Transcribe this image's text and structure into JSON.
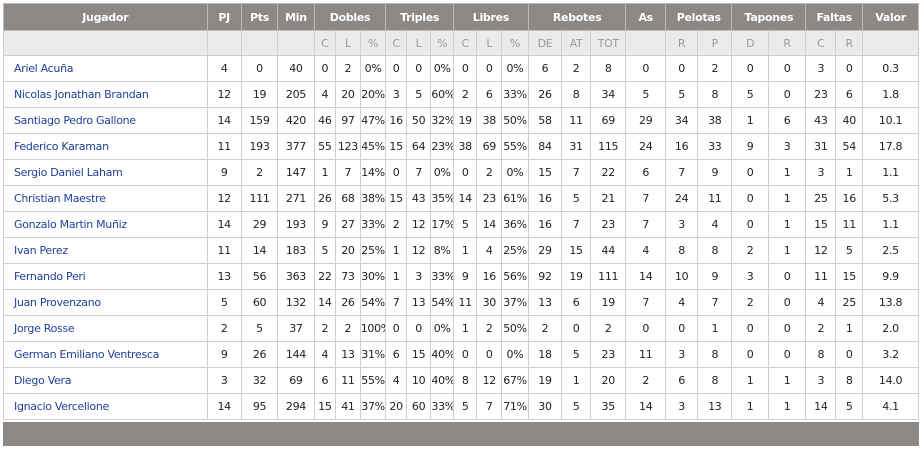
{
  "headers": {
    "jugador": "Jugador",
    "pj": "PJ",
    "pts": "Pts",
    "min": "Min",
    "dobles": "Dobles",
    "triples": "Triples",
    "libres": "Libres",
    "rebotes": "Rebotes",
    "as": "As",
    "pelotas": "Pelotas",
    "tapones": "Tapones",
    "faltas": "Faltas",
    "valor": "Valor"
  },
  "subheaders": {
    "c": "C",
    "l": "L",
    "pct": "%",
    "de": "DE",
    "at": "AT",
    "tot": "TOT",
    "r": "R",
    "p": "P",
    "d": "D"
  },
  "players": [
    {
      "name": "Ariel Acuña",
      "stats": [
        "4",
        "0",
        "40",
        "0",
        "2",
        "0%",
        "0",
        "0",
        "0%",
        "0",
        "0",
        "0%",
        "6",
        "2",
        "8",
        "0",
        "0",
        "2",
        "0",
        "0",
        "3",
        "0",
        "0.3"
      ]
    },
    {
      "name": "Nicolas Jonathan Brandan",
      "stats": [
        "12",
        "19",
        "205",
        "4",
        "20",
        "20%",
        "3",
        "5",
        "60%",
        "2",
        "6",
        "33%",
        "26",
        "8",
        "34",
        "5",
        "5",
        "8",
        "5",
        "0",
        "23",
        "6",
        "1.8"
      ]
    },
    {
      "name": "Santiago Pedro Gallone",
      "stats": [
        "14",
        "159",
        "420",
        "46",
        "97",
        "47%",
        "16",
        "50",
        "32%",
        "19",
        "38",
        "50%",
        "58",
        "11",
        "69",
        "29",
        "34",
        "38",
        "1",
        "6",
        "43",
        "40",
        "10.1"
      ]
    },
    {
      "name": "Federico Karaman",
      "stats": [
        "11",
        "193",
        "377",
        "55",
        "123",
        "45%",
        "15",
        "64",
        "23%",
        "38",
        "69",
        "55%",
        "84",
        "31",
        "115",
        "24",
        "16",
        "33",
        "9",
        "3",
        "31",
        "54",
        "17.8"
      ]
    },
    {
      "name": "Sergio Daniel Laham",
      "stats": [
        "9",
        "2",
        "147",
        "1",
        "7",
        "14%",
        "0",
        "7",
        "0%",
        "0",
        "2",
        "0%",
        "15",
        "7",
        "22",
        "6",
        "7",
        "9",
        "0",
        "1",
        "3",
        "1",
        "1.1"
      ]
    },
    {
      "name": "Christian Maestre",
      "stats": [
        "12",
        "111",
        "271",
        "26",
        "68",
        "38%",
        "15",
        "43",
        "35%",
        "14",
        "23",
        "61%",
        "16",
        "5",
        "21",
        "7",
        "24",
        "11",
        "0",
        "1",
        "25",
        "16",
        "5.3"
      ]
    },
    {
      "name": "Gonzalo Martin Muñiz",
      "stats": [
        "14",
        "29",
        "193",
        "9",
        "27",
        "33%",
        "2",
        "12",
        "17%",
        "5",
        "14",
        "36%",
        "16",
        "7",
        "23",
        "7",
        "3",
        "4",
        "0",
        "1",
        "15",
        "11",
        "1.1"
      ]
    },
    {
      "name": "Ivan Perez",
      "stats": [
        "11",
        "14",
        "183",
        "5",
        "20",
        "25%",
        "1",
        "12",
        "8%",
        "1",
        "4",
        "25%",
        "29",
        "15",
        "44",
        "4",
        "8",
        "8",
        "2",
        "1",
        "12",
        "5",
        "2.5"
      ]
    },
    {
      "name": "Fernando Peri",
      "stats": [
        "13",
        "56",
        "363",
        "22",
        "73",
        "30%",
        "1",
        "3",
        "33%",
        "9",
        "16",
        "56%",
        "92",
        "19",
        "111",
        "14",
        "10",
        "9",
        "3",
        "0",
        "11",
        "15",
        "9.9"
      ]
    },
    {
      "name": "Juan Provenzano",
      "stats": [
        "5",
        "60",
        "132",
        "14",
        "26",
        "54%",
        "7",
        "13",
        "54%",
        "11",
        "30",
        "37%",
        "13",
        "6",
        "19",
        "7",
        "4",
        "7",
        "2",
        "0",
        "4",
        "25",
        "13.8"
      ]
    },
    {
      "name": "Jorge Rosse",
      "stats": [
        "2",
        "5",
        "37",
        "2",
        "2",
        "100%",
        "0",
        "0",
        "0%",
        "1",
        "2",
        "50%",
        "2",
        "0",
        "2",
        "0",
        "0",
        "1",
        "0",
        "0",
        "2",
        "1",
        "2.0"
      ]
    },
    {
      "name": "German Emiliano Ventresca",
      "stats": [
        "9",
        "26",
        "144",
        "4",
        "13",
        "31%",
        "6",
        "15",
        "40%",
        "0",
        "0",
        "0%",
        "18",
        "5",
        "23",
        "11",
        "3",
        "8",
        "0",
        "0",
        "8",
        "0",
        "3.2"
      ]
    },
    {
      "name": "Diego Vera",
      "stats": [
        "3",
        "32",
        "69",
        "6",
        "11",
        "55%",
        "4",
        "10",
        "40%",
        "8",
        "12",
        "67%",
        "19",
        "1",
        "20",
        "2",
        "6",
        "8",
        "1",
        "1",
        "3",
        "8",
        "14.0"
      ]
    },
    {
      "name": "Ignacio Vercellone",
      "stats": [
        "14",
        "95",
        "294",
        "15",
        "41",
        "37%",
        "20",
        "60",
        "33%",
        "5",
        "7",
        "71%",
        "30",
        "5",
        "35",
        "14",
        "3",
        "13",
        "1",
        "1",
        "14",
        "5",
        "4.1"
      ]
    }
  ]
}
